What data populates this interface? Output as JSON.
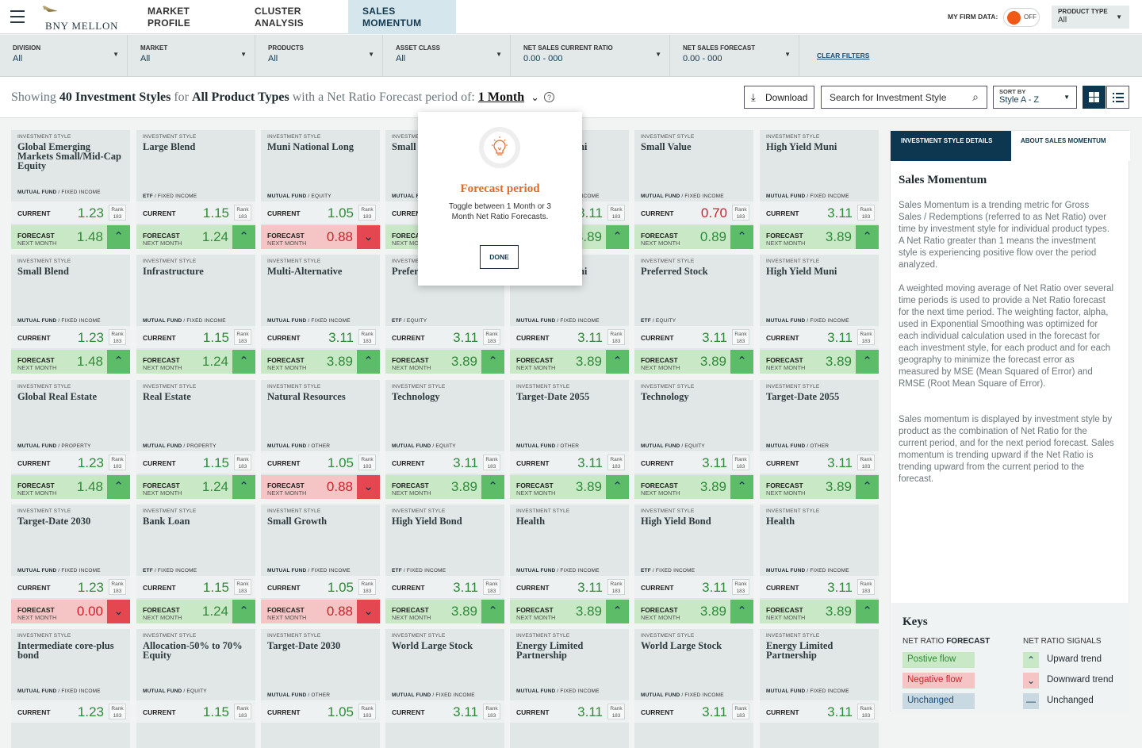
{
  "brand": {
    "logo_text": "BNY MELLON"
  },
  "nav": {
    "tabs": [
      {
        "line1": "MARKET",
        "line2": "PROFILE"
      },
      {
        "line1": "CLUSTER",
        "line2": "ANALYSIS"
      },
      {
        "line1": "SALES",
        "line2": "MOMENTUM"
      }
    ],
    "firm_data_label": "MY FIRM DATA:",
    "firm_toggle": "OFF",
    "product_type": {
      "label": "PRODUCT TYPE",
      "value": "All"
    }
  },
  "filters": [
    {
      "label": "DIVISION",
      "value": "All"
    },
    {
      "label": "MARKET",
      "value": "All"
    },
    {
      "label": "PRODUCTS",
      "value": "All"
    },
    {
      "label": "ASSET CLASS",
      "value": "All"
    },
    {
      "label": "NET SALES CURRENT RATIO",
      "value": "0.00 - 000"
    },
    {
      "label": "NET SALES FORECAST",
      "value": "0.00 - 000"
    }
  ],
  "clear_filters": "CLEAR FILTERS",
  "showing": {
    "p1": "Showing",
    "count": "40 Investment Styles",
    "p2": "for",
    "types": "All Product Types",
    "p3": "with a Net Ratio Forecast period of:",
    "period": "1 Month"
  },
  "toolbar": {
    "download": "Download",
    "search_placeholder": "Search for Investment Style",
    "sort_label": "SORT BY",
    "sort_value": "Style A - Z"
  },
  "card_labels": {
    "style": "INVESTMENT STYLE",
    "current": "CURRENT",
    "forecast": "FORECAST",
    "next": "NEXT MONTH",
    "rank": "Rank"
  },
  "cards": [
    {
      "name": "Global Emerging Markets Small/Mid-Cap Equity",
      "prod": "MUTUAL FUND",
      "asset": "FIXED INCOME",
      "cur": "1.23",
      "rank": "183",
      "fc": "1.48",
      "dir": "pos",
      "curneg": false
    },
    {
      "name": "Large Blend",
      "prod": "ETF",
      "asset": "FIXED INCOME",
      "cur": "1.15",
      "rank": "183",
      "fc": "1.24",
      "dir": "pos",
      "curneg": false
    },
    {
      "name": "Muni National Long",
      "prod": "MUTUAL FUND",
      "asset": "EQUITY",
      "cur": "1.05",
      "rank": "183",
      "fc": "0.88",
      "dir": "neg",
      "curneg": false
    },
    {
      "name": "Small",
      "prod": "MUTUAL FUND",
      "asset": "FIXED INCOME",
      "cur": "3.11",
      "rank": "183",
      "fc": "3.89",
      "dir": "pos",
      "curneg": false
    },
    {
      "name": "High Yield Muni",
      "prod": "MUTUAL FUND",
      "asset": "FIXED INCOME",
      "cur": "3.11",
      "rank": "183",
      "fc": "3.89",
      "dir": "pos",
      "curneg": false
    },
    {
      "name": "Small Value",
      "prod": "MUTUAL FUND",
      "asset": "FIXED INCOME",
      "cur": "0.70",
      "rank": "183",
      "fc": "0.89",
      "dir": "pos",
      "curneg": true
    },
    {
      "name": "High Yield Muni",
      "prod": "MUTUAL FUND",
      "asset": "FIXED INCOME",
      "cur": "3.11",
      "rank": "183",
      "fc": "3.89",
      "dir": "pos",
      "curneg": false
    },
    {
      "name": "Small Blend",
      "prod": "MUTUAL FUND",
      "asset": "FIXED INCOME",
      "cur": "1.23",
      "rank": "183",
      "fc": "1.48",
      "dir": "pos",
      "curneg": false
    },
    {
      "name": "Infrastructure",
      "prod": "MUTUAL FUND",
      "asset": "FIXED INCOME",
      "cur": "1.15",
      "rank": "183",
      "fc": "1.24",
      "dir": "pos",
      "curneg": false
    },
    {
      "name": "Multi-Alternative",
      "prod": "MUTUAL FUND",
      "asset": "FIXED INCOME",
      "cur": "3.11",
      "rank": "183",
      "fc": "3.89",
      "dir": "pos",
      "curneg": false
    },
    {
      "name": "Preferred Stock",
      "prod": "ETF",
      "asset": "EQUITY",
      "cur": "3.11",
      "rank": "183",
      "fc": "3.89",
      "dir": "pos",
      "curneg": false
    },
    {
      "name": "High Yield Muni",
      "prod": "MUTUAL FUND",
      "asset": "FIXED INCOME",
      "cur": "3.11",
      "rank": "183",
      "fc": "3.89",
      "dir": "pos",
      "curneg": false
    },
    {
      "name": "Preferred Stock",
      "prod": "ETF",
      "asset": "EQUITY",
      "cur": "3.11",
      "rank": "183",
      "fc": "3.89",
      "dir": "pos",
      "curneg": false
    },
    {
      "name": "High Yield Muni",
      "prod": "MUTUAL FUND",
      "asset": "FIXED INCOME",
      "cur": "3.11",
      "rank": "183",
      "fc": "3.89",
      "dir": "pos",
      "curneg": false
    },
    {
      "name": "Global Real Estate",
      "prod": "MUTUAL FUND",
      "asset": "PROPERTY",
      "cur": "1.23",
      "rank": "183",
      "fc": "1.48",
      "dir": "pos",
      "curneg": false
    },
    {
      "name": "Real Estate",
      "prod": "MUTUAL FUND",
      "asset": "PROPERTY",
      "cur": "1.15",
      "rank": "183",
      "fc": "1.24",
      "dir": "pos",
      "curneg": false
    },
    {
      "name": "Natural Resources",
      "prod": "MUTUAL FUND",
      "asset": "OTHER",
      "cur": "1.05",
      "rank": "183",
      "fc": "0.88",
      "dir": "neg",
      "curneg": false
    },
    {
      "name": "Technology",
      "prod": "MUTUAL FUND",
      "asset": "EQUITY",
      "cur": "3.11",
      "rank": "183",
      "fc": "3.89",
      "dir": "pos",
      "curneg": false
    },
    {
      "name": "Target-Date 2055",
      "prod": "MUTUAL FUND",
      "asset": "OTHER",
      "cur": "3.11",
      "rank": "183",
      "fc": "3.89",
      "dir": "pos",
      "curneg": false
    },
    {
      "name": "Technology",
      "prod": "MUTUAL FUND",
      "asset": "EQUITY",
      "cur": "3.11",
      "rank": "183",
      "fc": "3.89",
      "dir": "pos",
      "curneg": false
    },
    {
      "name": "Target-Date 2055",
      "prod": "MUTUAL FUND",
      "asset": "OTHER",
      "cur": "3.11",
      "rank": "183",
      "fc": "3.89",
      "dir": "pos",
      "curneg": false
    },
    {
      "name": "Target-Date 2030",
      "prod": "MUTUAL FUND",
      "asset": "FIXED INCOME",
      "cur": "1.23",
      "rank": "183",
      "fc": "0.00",
      "dir": "neg",
      "curneg": false
    },
    {
      "name": "Bank Loan",
      "prod": "ETF",
      "asset": "FIXED INCOME",
      "cur": "1.15",
      "rank": "183",
      "fc": "1.24",
      "dir": "pos",
      "curneg": false
    },
    {
      "name": "Small Growth",
      "prod": "MUTUAL FUND",
      "asset": "FIXED INCOME",
      "cur": "1.05",
      "rank": "183",
      "fc": "0.88",
      "dir": "neg",
      "curneg": false
    },
    {
      "name": "High Yield Bond",
      "prod": "ETF",
      "asset": "FIXED INCOME",
      "cur": "3.11",
      "rank": "183",
      "fc": "3.89",
      "dir": "pos",
      "curneg": false
    },
    {
      "name": "Health",
      "prod": "MUTUAL FUND",
      "asset": "FIXED INCOME",
      "cur": "3.11",
      "rank": "183",
      "fc": "3.89",
      "dir": "pos",
      "curneg": false
    },
    {
      "name": "High Yield Bond",
      "prod": "ETF",
      "asset": "FIXED INCOME",
      "cur": "3.11",
      "rank": "183",
      "fc": "3.89",
      "dir": "pos",
      "curneg": false
    },
    {
      "name": "Health",
      "prod": "MUTUAL FUND",
      "asset": "FIXED INCOME",
      "cur": "3.11",
      "rank": "183",
      "fc": "3.89",
      "dir": "pos",
      "curneg": false
    },
    {
      "name": "Intermediate core-plus bond",
      "prod": "MUTUAL FUND",
      "asset": "FIXED INCOME",
      "cur": "1.23",
      "rank": "183",
      "fc": "",
      "dir": "",
      "curneg": false
    },
    {
      "name": "Allocation-50% to 70% Equity",
      "prod": "MUTUAL FUND",
      "asset": "EQUITY",
      "cur": "1.15",
      "rank": "183",
      "fc": "",
      "dir": "",
      "curneg": false
    },
    {
      "name": "Target-Date 2030",
      "prod": "MUTUAL FUND",
      "asset": "OTHER",
      "cur": "1.05",
      "rank": "183",
      "fc": "",
      "dir": "",
      "curneg": false
    },
    {
      "name": "World Large Stock",
      "prod": "MUTUAL FUND",
      "asset": "FIXED INCOME",
      "cur": "3.11",
      "rank": "183",
      "fc": "",
      "dir": "",
      "curneg": false
    },
    {
      "name": "Energy Limited Partnership",
      "prod": "MUTUAL FUND",
      "asset": "FIXED INCOME",
      "cur": "3.11",
      "rank": "183",
      "fc": "",
      "dir": "",
      "curneg": false
    },
    {
      "name": "World Large Stock",
      "prod": "MUTUAL FUND",
      "asset": "FIXED INCOME",
      "cur": "3.11",
      "rank": "183",
      "fc": "",
      "dir": "",
      "curneg": false
    },
    {
      "name": "Energy Limited Partnership",
      "prod": "MUTUAL FUND",
      "asset": "FIXED INCOME",
      "cur": "3.11",
      "rank": "183",
      "fc": "",
      "dir": "",
      "curneg": false
    }
  ],
  "popup": {
    "title": "Forecast period",
    "desc": "Toggle between 1 Month or 3 Month Net Ratio Forecasts.",
    "button": "DONE"
  },
  "panel": {
    "tab1": "INVESTMENT STYLE DETAILS",
    "tab2": "ABOUT SALES MOMENTUM",
    "title": "Sales Momentum",
    "p1": "Sales Momentum is a trending metric for Gross Sales / Redemptions (referred to as Net Ratio) over time by investment style for individual product types. A Net Ratio greater than 1 means the investment style is experiencing positive flow over the period analyzed.",
    "p2": "A weighted moving average of Net Ratio over several time periods is used to provide a Net Ratio forecast for the next time period.  The weighting factor, alpha, used in Exponential Smoothing was optimized for each individual calculation used in the forecast for each investment style, for each product and for each geography to minimize the forecast error as measured by MSE (Mean Squared of Error) and RMSE (Root Mean Square of Error).",
    "p3": "Sales momentum is displayed by investment style by product as the combination of Net Ratio for the current period, and for the next period forecast. Sales momentum is trending upward if the Net Ratio is trending upward from the current period to the forecast."
  },
  "keys": {
    "title": "Keys",
    "col1_pre": "NET RATIO",
    "col1": "FORECAST",
    "col2": "NET RATIO SIGNALS",
    "forecast": [
      "Postive flow",
      "Negative flow",
      "Unchanged"
    ],
    "signals": [
      "Upward trend",
      "Downward trend",
      "Unchanged"
    ],
    "colors": {
      "pos": "#c9e9c6",
      "neg": "#f5c4c4",
      "unch": "#c9d9e2"
    }
  }
}
